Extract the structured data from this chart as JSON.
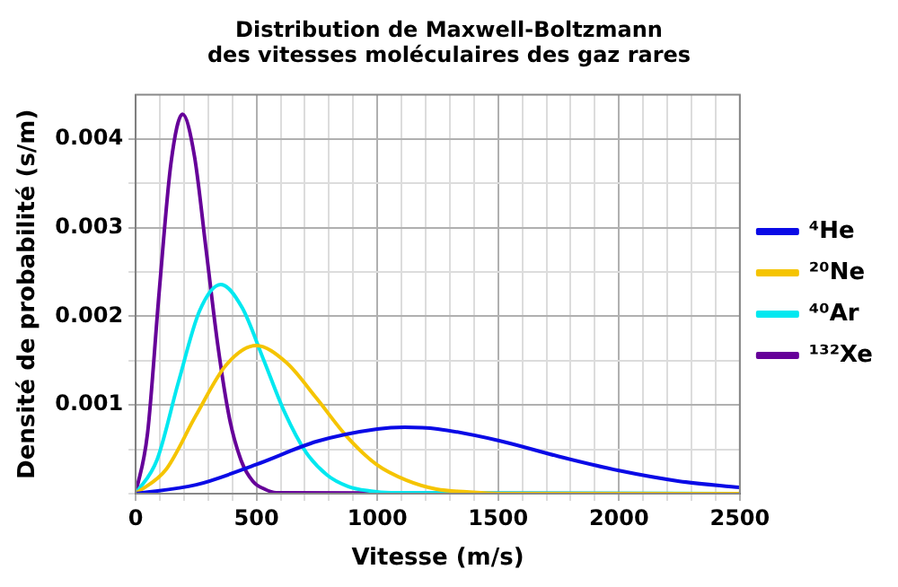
{
  "chart_data": {
    "type": "line",
    "title": "Distribution de Maxwell-Boltzmann\ndes vitesses moléculaires des gaz rares",
    "xlabel": "Vitesse (m/s)",
    "ylabel": "Densité de probabilité (s/m)",
    "xlim": [
      0,
      2500
    ],
    "ylim": [
      0,
      0.0045
    ],
    "xticks": [
      0,
      {
        "value": 100,
        "label": null
      },
      {
        "value": 200,
        "label": null
      },
      {
        "value": 300,
        "label": null
      },
      {
        "value": 400,
        "label": null
      },
      500,
      {
        "value": 600,
        "label": null
      },
      {
        "value": 700,
        "label": null
      },
      {
        "value": 800,
        "label": null
      },
      {
        "value": 900,
        "label": null
      },
      1000,
      {
        "value": 1100,
        "label": null
      },
      {
        "value": 1200,
        "label": null
      },
      {
        "value": 1300,
        "label": null
      },
      {
        "value": 1400,
        "label": null
      },
      1500,
      {
        "value": 1600,
        "label": null
      },
      {
        "value": 1700,
        "label": null
      },
      {
        "value": 1800,
        "label": null
      },
      {
        "value": 1900,
        "label": null
      },
      2000,
      {
        "value": 2100,
        "label": null
      },
      {
        "value": 2200,
        "label": null
      },
      {
        "value": 2300,
        "label": null
      },
      {
        "value": 2400,
        "label": null
      },
      2500
    ],
    "yticks": [
      {
        "value": 0,
        "label": null
      },
      {
        "value": 0.0005,
        "label": null
      },
      0.001,
      {
        "value": 0.0015,
        "label": null
      },
      0.002,
      {
        "value": 0.0025,
        "label": null
      },
      0.003,
      {
        "value": 0.0035,
        "label": null
      },
      0.004
    ],
    "grid": true,
    "legend": "right",
    "marker": "none",
    "line_style": "solid",
    "series": [
      {
        "name": "⁴He",
        "color": "#0a0ae6",
        "x": [
          0,
          250,
          500,
          750,
          1000,
          1113,
          1250,
          1500,
          1750,
          2000,
          2250,
          2500
        ],
        "values": [
          0,
          0.0001,
          0.00033,
          0.00059,
          0.00073,
          0.00075,
          0.00073,
          0.0006,
          0.00042,
          0.00026,
          0.00014,
          7e-05
        ]
      },
      {
        "name": "²⁰Ne",
        "color": "#f5c400",
        "x": [
          0,
          125,
          249,
          374,
          498,
          623,
          747,
          872,
          996,
          1121,
          1245,
          1370,
          1494,
          2500
        ],
        "values": [
          0,
          0.00027,
          0.00088,
          0.00145,
          0.00167,
          0.00148,
          0.00108,
          0.00065,
          0.00033,
          0.00015,
          5e-05,
          2e-05,
          0,
          0
        ]
      },
      {
        "name": "⁴⁰Ar",
        "color": "#00e8f0",
        "x": [
          0,
          88,
          176,
          264,
          352,
          440,
          528,
          616,
          704,
          792,
          880,
          968,
          1056,
          2500
        ],
        "values": [
          0,
          0.00038,
          0.00125,
          0.00206,
          0.00236,
          0.0021,
          0.00152,
          0.00092,
          0.00047,
          0.00021,
          8e-05,
          3e-05,
          1e-05,
          0
        ]
      },
      {
        "name": "¹³²Xe",
        "color": "#660099",
        "x": [
          0,
          49,
          97,
          146,
          194,
          243,
          291,
          340,
          388,
          437,
          485,
          534,
          582,
          2500
        ],
        "values": [
          0,
          0.00068,
          0.00227,
          0.00373,
          0.00428,
          0.00381,
          0.00276,
          0.00167,
          0.00085,
          0.00037,
          0.00014,
          5e-05,
          1e-05,
          0
        ]
      }
    ]
  }
}
